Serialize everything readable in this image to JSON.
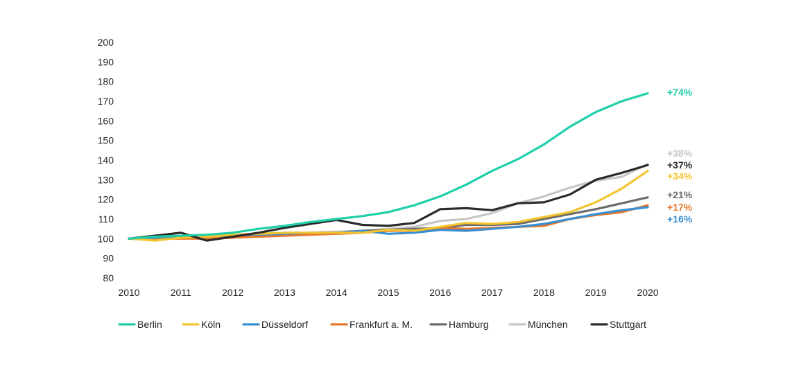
{
  "chart_data": {
    "type": "line",
    "x": [
      2010,
      2010.5,
      2011,
      2011.5,
      2012,
      2012.5,
      2013,
      2013.5,
      2014,
      2014.5,
      2015,
      2015.5,
      2016,
      2016.5,
      2017,
      2017.5,
      2018,
      2018.5,
      2019,
      2019.5,
      2020
    ],
    "xticks": [
      "2010",
      "2011",
      "2012",
      "2013",
      "2014",
      "2015",
      "2016",
      "2017",
      "2018",
      "2019",
      "2020"
    ],
    "yticks": [
      "80",
      "90",
      "100",
      "110",
      "120",
      "130",
      "140",
      "150",
      "160",
      "170",
      "180",
      "190",
      "200"
    ],
    "ylim": [
      80,
      200
    ],
    "xlim": [
      2010,
      2020
    ],
    "grid": false,
    "legend_position": "bottom",
    "series": [
      {
        "name": "München",
        "color": "#c6c6c6",
        "end_label": "+38%",
        "values": [
          100,
          101,
          101,
          101.5,
          102,
          102.5,
          103,
          103,
          103.5,
          104,
          105,
          106,
          109,
          110,
          113,
          118,
          121.5,
          126,
          129.5,
          131.5,
          138
        ]
      },
      {
        "name": "Hamburg",
        "color": "#6b6b6b",
        "end_label": "+21%",
        "values": [
          100,
          100.5,
          101,
          101.5,
          101.5,
          102,
          102.5,
          103,
          103,
          104,
          104.5,
          105,
          105.5,
          107,
          107,
          107.5,
          110,
          112.5,
          115,
          118,
          121
        ]
      },
      {
        "name": "Frankfurt a. M.",
        "color": "#e8782a",
        "end_label": "+17%",
        "values": [
          100,
          100,
          100,
          100,
          100.5,
          101,
          101.5,
          102,
          102.5,
          103,
          104,
          104,
          105.5,
          105,
          105.5,
          106,
          106.5,
          110,
          112,
          113.5,
          117
        ]
      },
      {
        "name": "Düsseldorf",
        "color": "#3a8fd1",
        "end_label": "+16%",
        "values": [
          100,
          100.5,
          101.5,
          101.5,
          102,
          102,
          102.5,
          103,
          103,
          104,
          102.5,
          103,
          104.5,
          104,
          105,
          106,
          107.5,
          110,
          112.5,
          114.5,
          116
        ]
      },
      {
        "name": "Köln",
        "color": "#f2c42e",
        "end_label": "+34%",
        "values": [
          100,
          99,
          100.5,
          101,
          102,
          102.5,
          103,
          103,
          103,
          103,
          104.5,
          104,
          106,
          108,
          107.5,
          108.5,
          111,
          113.5,
          118.5,
          125.5,
          134.5
        ]
      },
      {
        "name": "Stuttgart",
        "color": "#2b2b2b",
        "end_label": "+37%",
        "values": [
          100,
          101.5,
          103,
          99,
          101,
          103,
          105.5,
          107.5,
          109.5,
          107,
          106.5,
          108,
          115,
          115.5,
          114.5,
          118,
          118.5,
          122.5,
          130,
          133.5,
          137.5
        ]
      },
      {
        "name": "Berlin",
        "color": "#1ecfaa",
        "end_label": "+74%",
        "values": [
          100,
          101,
          101.5,
          102,
          103,
          105,
          106.5,
          108.5,
          110,
          111.5,
          113.5,
          117,
          121.5,
          127.5,
          134.5,
          140.5,
          148,
          157,
          164.5,
          170,
          174
        ]
      }
    ],
    "legend_order": [
      "Berlin",
      "Köln",
      "Düsseldorf",
      "Frankfurt a. M.",
      "Hamburg",
      "München",
      "Stuttgart"
    ]
  }
}
